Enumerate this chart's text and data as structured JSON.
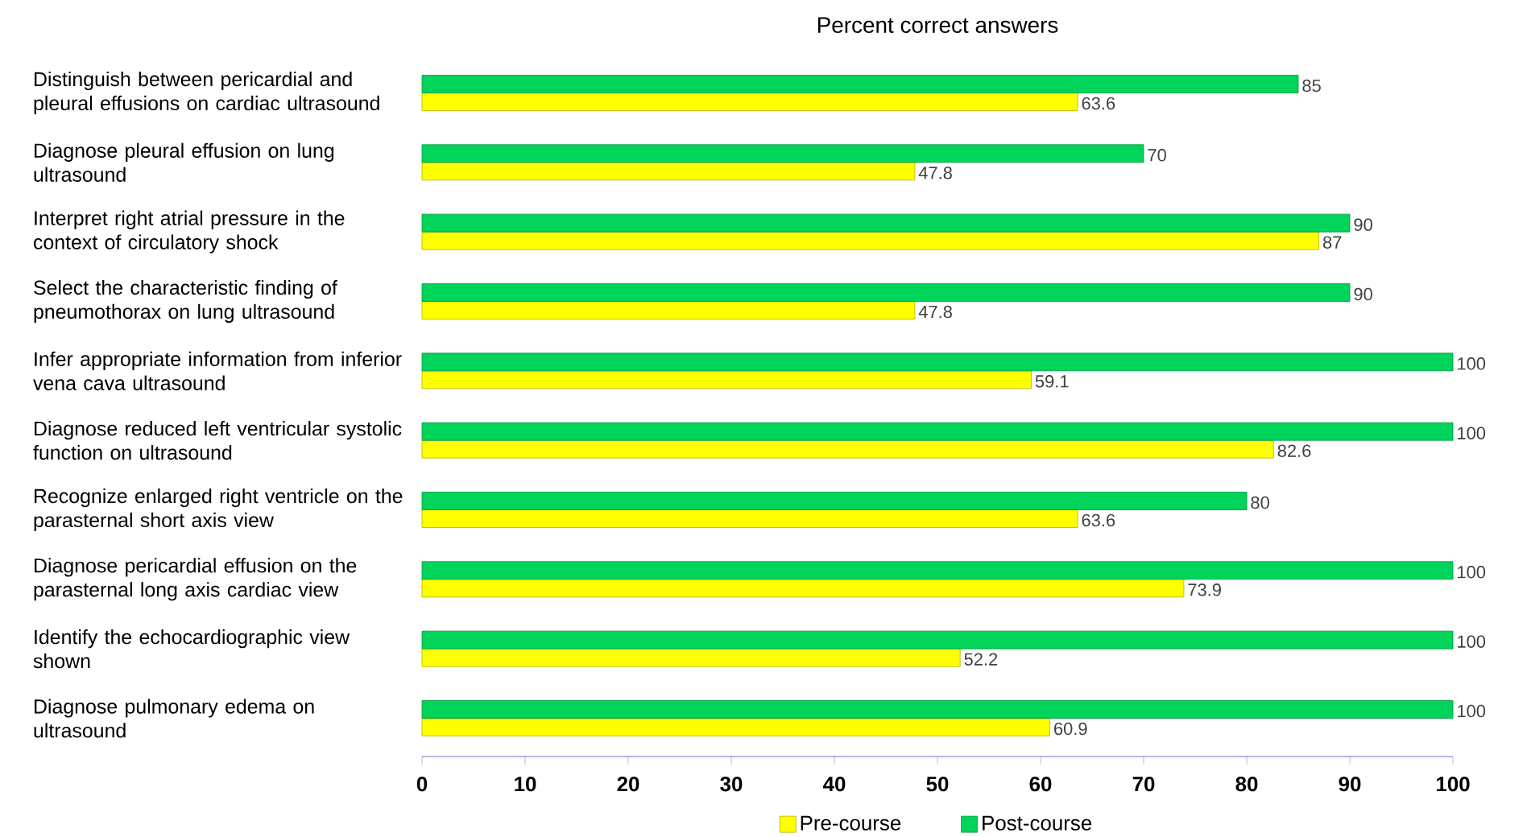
{
  "chart_data": {
    "type": "bar",
    "orientation": "horizontal",
    "title": "Percent correct answers",
    "categories": [
      "Distinguish between pericardial and pleural effusions on cardiac ultrasound",
      "Diagnose pleural effusion on lung ultrasound",
      "Interpret right atrial pressure in the context of circulatory shock",
      "Select the characteristic finding of pneumothorax on lung ultrasound",
      "Infer appropriate information from inferior vena cava ultrasound",
      "Diagnose reduced left ventricular systolic function on ultrasound",
      "Recognize enlarged right ventricle on the parasternal short axis view",
      "Diagnose pericardial effusion on the parasternal long axis cardiac view",
      "Identify the echocardiographic view shown",
      "Diagnose pulmonary edema on ultrasound"
    ],
    "series": [
      {
        "name": "Pre-course",
        "color": "#ffff00",
        "values": [
          63.6,
          47.8,
          87,
          47.8,
          59.1,
          82.6,
          63.6,
          73.9,
          52.2,
          60.9
        ]
      },
      {
        "name": "Post-course",
        "color": "#00d45a",
        "values": [
          85,
          70,
          90,
          90,
          100,
          100,
          80,
          100,
          100,
          100
        ]
      }
    ],
    "xlim": [
      0,
      100
    ],
    "xticks": [
      0,
      10,
      20,
      30,
      40,
      50,
      60,
      70,
      80,
      90,
      100
    ],
    "data_labels": true,
    "legend": "bottom",
    "grid": false
  }
}
